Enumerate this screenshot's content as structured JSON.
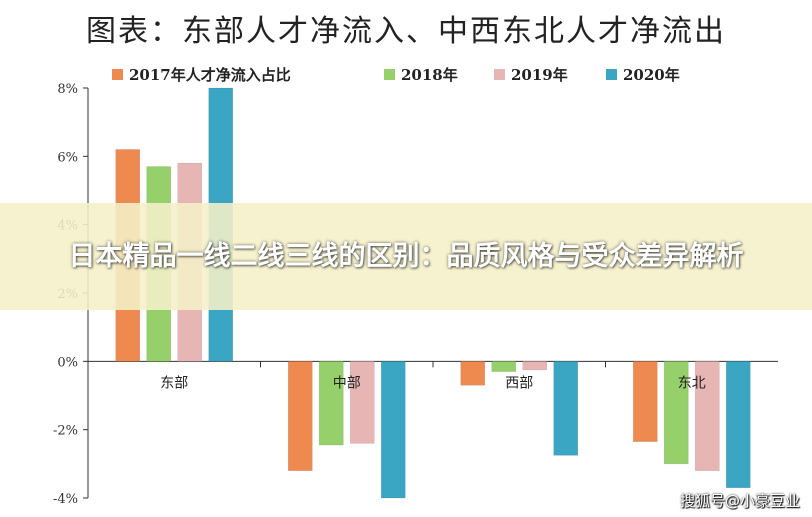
{
  "chart_data": {
    "type": "bar",
    "title": "图表：东部人才净流入、中西东北人才净流出",
    "categories": [
      "东部",
      "中部",
      "西部",
      "东北"
    ],
    "series": [
      {
        "name": "2017年人才净流入占比",
        "values": [
          6.2,
          -3.2,
          -0.7,
          -2.35
        ],
        "color": "#ee8a4f"
      },
      {
        "name": "2018年",
        "values": [
          5.7,
          -2.45,
          -0.3,
          -3.0
        ],
        "color": "#96d06a"
      },
      {
        "name": "2019年",
        "values": [
          5.8,
          -2.4,
          -0.25,
          -3.2
        ],
        "color": "#e8b5b5"
      },
      {
        "name": "2020年",
        "values": [
          8.0,
          -4.0,
          -2.75,
          -3.7
        ],
        "color": "#3aa6c4"
      }
    ],
    "ylim": [
      -4,
      8
    ],
    "yticks": [
      -4,
      -2,
      0,
      2,
      4,
      6,
      8
    ],
    "ytick_labels": [
      "-4%",
      "-2%",
      "0%",
      "2%",
      "4%",
      "6%",
      "8%"
    ],
    "grid": false,
    "legend": "top"
  },
  "overlay": {
    "banner_text": "日本精品一线二线三线的区别：品质风格与受众差异解析",
    "watermark": "搜狐号@小豪豆业"
  }
}
